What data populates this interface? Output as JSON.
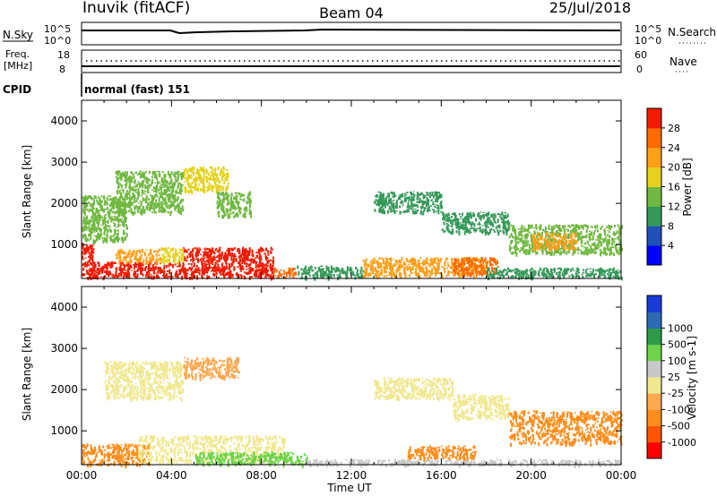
{
  "header": {
    "radar": "Inuvik (fitACF)",
    "beam": "Beam 04",
    "date": "25/Jul/2018"
  },
  "aux": {
    "nsky": {
      "label": "N.Sky",
      "tick_top": "10^5",
      "tick_bottom": "10^0"
    },
    "nsearch": {
      "label": "N.Search",
      "tick_top": "10^5",
      "tick_bottom": "10^0"
    },
    "freq": {
      "label_top": "Freq.",
      "label_unit": "[MHz]",
      "tick_top": "18",
      "tick_bottom": "8",
      "value_mhz": 11
    },
    "nave": {
      "label": "Nave",
      "tick_top": "60",
      "tick_bottom": "0",
      "value": 25
    },
    "cpid": {
      "label": "CPID",
      "value": "normal (fast) 151"
    }
  },
  "chart_data": [
    {
      "type": "heatmap",
      "name": "power",
      "ylabel": "Slant Range [km]",
      "yticks": [
        "1000",
        "2000",
        "3000",
        "4000"
      ],
      "ylim": [
        180,
        4500
      ],
      "xlim_hours": [
        0,
        24
      ],
      "colorbar": {
        "label": "Power [dB]",
        "ticks": [
          "4",
          "8",
          "12",
          "16",
          "20",
          "24",
          "28"
        ],
        "colors": [
          "#0000ff",
          "#2050b8",
          "#35985a",
          "#70b840",
          "#e6d21e",
          "#ff9f1a",
          "#ff6b00",
          "#f21a00"
        ],
        "range": [
          0,
          32
        ]
      },
      "regions": [
        {
          "h0": 0.0,
          "h1": 0.5,
          "r0": 200,
          "r1": 1100,
          "value": 28
        },
        {
          "h0": 0.5,
          "h1": 4.5,
          "r0": 220,
          "r1": 600,
          "value": 28
        },
        {
          "h0": 4.5,
          "h1": 8.5,
          "r0": 220,
          "r1": 950,
          "value": 30
        },
        {
          "h0": 8.5,
          "h1": 9.5,
          "r0": 220,
          "r1": 450,
          "value": 26
        },
        {
          "h0": 1.5,
          "h1": 3.5,
          "r0": 600,
          "r1": 900,
          "value": 22
        },
        {
          "h0": 3.5,
          "h1": 4.5,
          "r0": 600,
          "r1": 950,
          "value": 18
        },
        {
          "h0": 0.0,
          "h1": 2.0,
          "r0": 1100,
          "r1": 2200,
          "value": 12
        },
        {
          "h0": 1.5,
          "h1": 4.5,
          "r0": 1800,
          "r1": 2800,
          "value": 14
        },
        {
          "h0": 4.5,
          "h1": 6.5,
          "r0": 2300,
          "r1": 2900,
          "value": 18
        },
        {
          "h0": 6.0,
          "h1": 7.5,
          "r0": 1700,
          "r1": 2300,
          "value": 13
        },
        {
          "h0": 9.5,
          "h1": 12.5,
          "r0": 220,
          "r1": 500,
          "value": 8
        },
        {
          "h0": 13.0,
          "h1": 16.0,
          "r0": 1800,
          "r1": 2300,
          "value": 10
        },
        {
          "h0": 16.0,
          "h1": 19.0,
          "r0": 1300,
          "r1": 1800,
          "value": 11
        },
        {
          "h0": 19.0,
          "h1": 24.0,
          "r0": 800,
          "r1": 1500,
          "value": 12
        },
        {
          "h0": 12.5,
          "h1": 18.0,
          "r0": 250,
          "r1": 700,
          "value": 20
        },
        {
          "h0": 16.5,
          "h1": 18.5,
          "r0": 300,
          "r1": 700,
          "value": 26
        },
        {
          "h0": 18.0,
          "h1": 24.0,
          "r0": 220,
          "r1": 450,
          "value": 8
        },
        {
          "h0": 20.0,
          "h1": 22.0,
          "r0": 900,
          "r1": 1300,
          "value": 22
        }
      ]
    },
    {
      "type": "heatmap",
      "name": "velocity",
      "ylabel": "Slant Range [km]",
      "yticks": [
        "1000",
        "2000",
        "3000",
        "4000"
      ],
      "ylim": [
        180,
        4500
      ],
      "xlabel": "Time UT",
      "xticks": [
        "00:00",
        "04:00",
        "08:00",
        "12:00",
        "16:00",
        "20:00",
        "00:00"
      ],
      "xlim_hours": [
        0,
        24
      ],
      "colorbar": {
        "label": "Velocity [m s-1]",
        "ticks": [
          "-1000",
          "-500",
          "-100",
          "-25",
          "25",
          "100",
          "500",
          "1000"
        ],
        "colors": [
          "#ff0000",
          "#ff5500",
          "#ff8c1a",
          "#ffa850",
          "#f0e890",
          "#c8c8c8",
          "#6fd34a",
          "#2e9a4a",
          "#2c6ab3",
          "#1a3ad6"
        ]
      },
      "regions": [
        {
          "h0": 0.0,
          "h1": 3.0,
          "r0": 200,
          "r1": 700,
          "value": -300
        },
        {
          "h0": 2.5,
          "h1": 9.0,
          "r0": 250,
          "r1": 900,
          "value": 0
        },
        {
          "h0": 5.0,
          "h1": 10.0,
          "r0": 200,
          "r1": 500,
          "value": 120
        },
        {
          "h0": 1.0,
          "h1": 4.5,
          "r0": 1800,
          "r1": 2700,
          "value": 0
        },
        {
          "h0": 4.5,
          "h1": 7.0,
          "r0": 2300,
          "r1": 2800,
          "value": -60
        },
        {
          "h0": 10.0,
          "h1": 24.0,
          "r0": 200,
          "r1": 320,
          "value": 100
        },
        {
          "h0": 13.0,
          "h1": 16.5,
          "r0": 1800,
          "r1": 2300,
          "value": 0
        },
        {
          "h0": 16.5,
          "h1": 19.0,
          "r0": 1300,
          "r1": 1900,
          "value": 0
        },
        {
          "h0": 14.5,
          "h1": 17.5,
          "r0": 350,
          "r1": 650,
          "value": -300
        },
        {
          "h0": 19.0,
          "h1": 24.0,
          "r0": 700,
          "r1": 1500,
          "value": -400
        }
      ]
    }
  ]
}
